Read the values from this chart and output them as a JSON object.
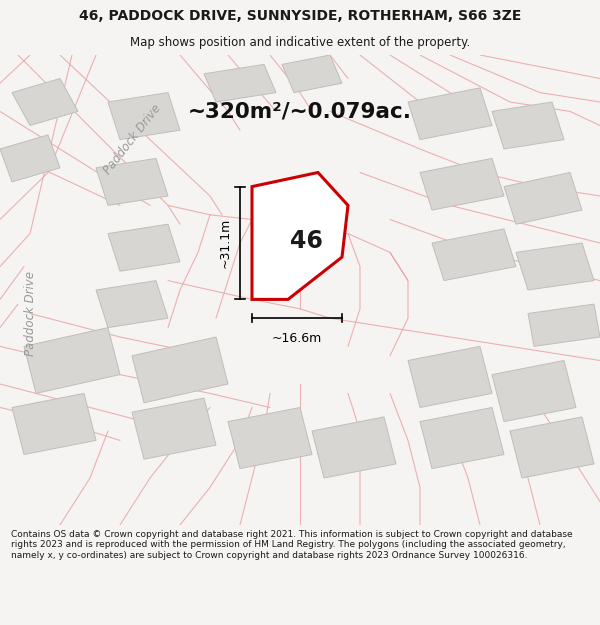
{
  "title_line1": "46, PADDOCK DRIVE, SUNNYSIDE, ROTHERHAM, S66 3ZE",
  "title_line2": "Map shows position and indicative extent of the property.",
  "area_text": "~320m²/~0.079ac.",
  "plot_number": "46",
  "dim_vertical": "~31.1m",
  "dim_horizontal": "~16.6m",
  "paddock_drive_label_upper": "Paddock Drive",
  "paddock_drive_label_left": "Paddock Drive",
  "footer_text": "Contains OS data © Crown copyright and database right 2021. This information is subject to Crown copyright and database rights 2023 and is reproduced with the permission of HM Land Registry. The polygons (including the associated geometry, namely x, y co-ordinates) are subject to Crown copyright and database rights 2023 Ordnance Survey 100026316.",
  "bg_color": "#f5f4f2",
  "map_bg": "#f0eeeb",
  "road_line_color": "#e8a0a0",
  "building_fill": "#d8d6d2",
  "building_outline": "#c0bebb",
  "plot_fill": "#ffffff",
  "plot_outline": "#cc0000",
  "dim_color": "#111111",
  "text_color": "#1a1a1a",
  "label_color": "#999999"
}
